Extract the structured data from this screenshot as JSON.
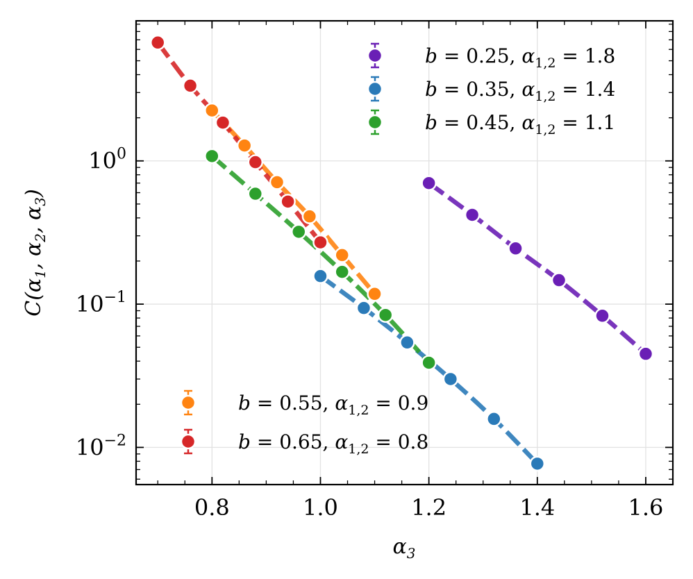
{
  "chart_data": {
    "type": "line",
    "title": "",
    "xlabel": "α3",
    "ylabel": "C(α1, α2, α3)",
    "xscale": "linear",
    "yscale": "log",
    "xlim": [
      0.66,
      1.65
    ],
    "ylim": [
      0.0055,
      9.5
    ],
    "xticks": [
      0.8,
      1.0,
      1.2,
      1.4,
      1.6
    ],
    "xtick_labels": [
      "0.8",
      "1.0",
      "1.2",
      "1.4",
      "1.6"
    ],
    "yticks": [
      0.01,
      0.1,
      1
    ],
    "ytick_labels": [
      {
        "base": "10",
        "exp": "−2"
      },
      {
        "base": "10",
        "exp": "−1"
      },
      {
        "base": "10",
        "exp": "0"
      }
    ],
    "grid": true,
    "legends": [
      {
        "placement": "top-right",
        "entries": [
          0,
          1,
          2
        ]
      },
      {
        "placement": "bottom-left",
        "entries": [
          3,
          4
        ]
      }
    ],
    "series": [
      {
        "name": "b = 0.25, α1,2 = 1.8",
        "label_b": "0.25",
        "label_alpha": "1.8",
        "color": "#6a1fb5",
        "x": [
          1.2,
          1.28,
          1.36,
          1.44,
          1.52,
          1.6
        ],
        "y": [
          0.7,
          0.42,
          0.245,
          0.147,
          0.083,
          0.045
        ]
      },
      {
        "name": "b = 0.35, α1,2 = 1.4",
        "label_b": "0.35",
        "label_alpha": "1.4",
        "color": "#2a7ab8",
        "x": [
          1.0,
          1.08,
          1.16,
          1.24,
          1.32,
          1.4
        ],
        "y": [
          0.157,
          0.094,
          0.054,
          0.03,
          0.0158,
          0.0077
        ]
      },
      {
        "name": "b = 0.45, α1,2 = 1.1",
        "label_b": "0.45",
        "label_alpha": "1.1",
        "color": "#2ca02c",
        "x": [
          0.8,
          0.88,
          0.96,
          1.04,
          1.12,
          1.2
        ],
        "y": [
          1.08,
          0.59,
          0.32,
          0.168,
          0.084,
          0.039
        ]
      },
      {
        "name": "b = 0.55, α1,2 = 0.9",
        "label_b": "0.55",
        "label_alpha": "0.9",
        "color": "#ff8412",
        "x": [
          0.8,
          0.86,
          0.92,
          0.98,
          1.04,
          1.1
        ],
        "y": [
          2.25,
          1.28,
          0.71,
          0.41,
          0.22,
          0.118
        ]
      },
      {
        "name": "b = 0.65, α1,2 = 0.8",
        "label_b": "0.65",
        "label_alpha": "0.8",
        "color": "#d62728",
        "x": [
          0.7,
          0.76,
          0.82,
          0.88,
          0.94,
          1.0
        ],
        "y": [
          6.7,
          3.35,
          1.85,
          0.98,
          0.52,
          0.27
        ]
      }
    ]
  }
}
